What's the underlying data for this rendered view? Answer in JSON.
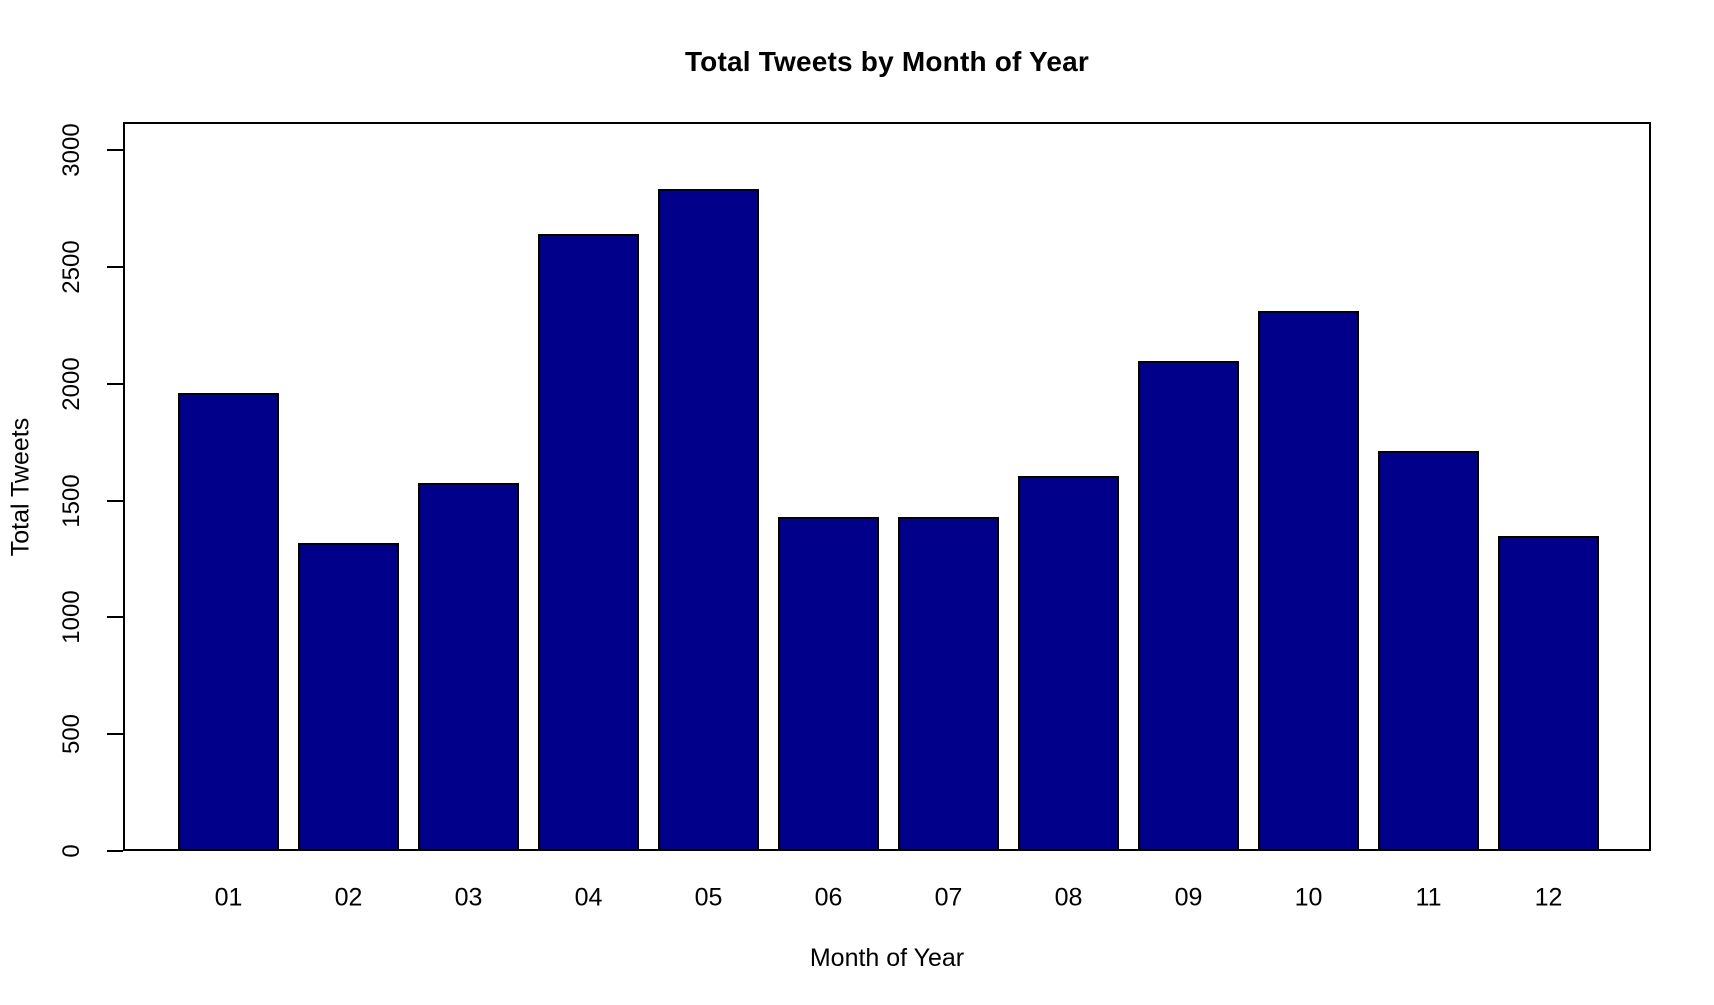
{
  "chart_data": {
    "type": "bar",
    "title": "Total Tweets by Month of Year",
    "xlabel": "Month of Year",
    "ylabel": "Total Tweets",
    "categories": [
      "01",
      "02",
      "03",
      "04",
      "05",
      "06",
      "07",
      "08",
      "09",
      "10",
      "11",
      "12"
    ],
    "values": [
      1960,
      1320,
      1575,
      2640,
      2835,
      1430,
      1430,
      1605,
      2095,
      2310,
      1710,
      1350
    ],
    "ylim": [
      0,
      3000
    ],
    "yticks": [
      0,
      500,
      1000,
      1500,
      2000,
      2500,
      3000
    ],
    "grid": false,
    "legend_position": "none",
    "colors": {
      "bar_fill": "#00008B",
      "bar_border": "#000000",
      "axis": "#000000",
      "background": "#FFFFFF",
      "text": "#000000"
    }
  }
}
